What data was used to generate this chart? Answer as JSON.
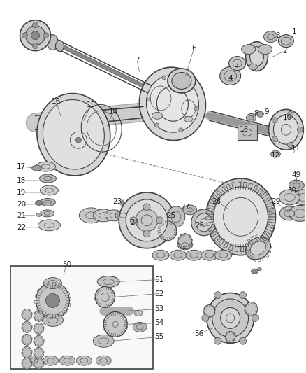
{
  "bg_color": "#ffffff",
  "line_color": "#404040",
  "figsize": [
    4.38,
    5.33
  ],
  "dpi": 100,
  "label_fontsize": 7.5,
  "label_color": "#222222"
}
